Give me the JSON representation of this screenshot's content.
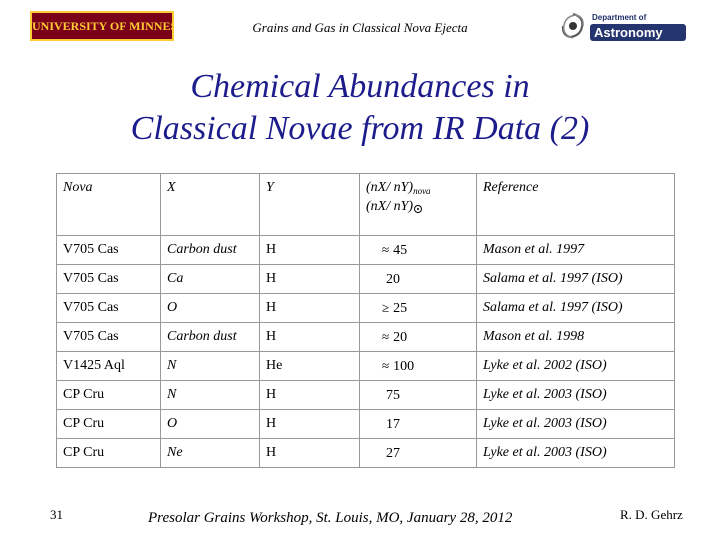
{
  "header": {
    "logo_text": "UNIVERSITY OF MINNESOTA",
    "title": "Grains and Gas in Classical Nova Ejecta",
    "dept_line1": "Department of",
    "dept_line2": "Astronomy"
  },
  "slide": {
    "title_line1": "Chemical Abundances in",
    "title_line2": "Classical Novae from IR Data (2)"
  },
  "table": {
    "headers": {
      "nova": "Nova",
      "x": "X",
      "y": "Y",
      "ratio_nova": "(nX/ nY)",
      "ratio_nova_sub": "nova",
      "ratio_sun": "(nX/ nY)",
      "reference": "Reference"
    },
    "rows": [
      {
        "nova": "V705 Cas",
        "x": "Carbon dust",
        "y": "H",
        "sym": "≈",
        "value": "45",
        "ref": "Mason et al. 1997"
      },
      {
        "nova": "V705 Cas",
        "x": "Ca",
        "y": "H",
        "sym": "",
        "value": "20",
        "ref": "Salama et al. 1997 (ISO)"
      },
      {
        "nova": "V705 Cas",
        "x": "O",
        "y": "H",
        "sym": "≥",
        "value": "25",
        "ref": "Salama et al. 1997 (ISO)"
      },
      {
        "nova": "V705 Cas",
        "x": "Carbon dust",
        "y": "H",
        "sym": "≈",
        "value": "20",
        "ref": "Mason et al. 1998"
      },
      {
        "nova": "V1425 Aql",
        "x": "N",
        "y": "He",
        "sym": "≈",
        "value": "100",
        "ref": "Lyke et al. 2002 (ISO)"
      },
      {
        "nova": "CP Cru",
        "x": "N",
        "y": "H",
        "sym": "",
        "value": "75",
        "ref": "Lyke et al. 2003 (ISO)"
      },
      {
        "nova": "CP Cru",
        "x": "O",
        "y": "H",
        "sym": "",
        "value": "17",
        "ref": "Lyke et al. 2003 (ISO)"
      },
      {
        "nova": "CP Cru",
        "x": "Ne",
        "y": "H",
        "sym": "",
        "value": "27",
        "ref": "Lyke et al. 2003 (ISO)"
      }
    ]
  },
  "footer": {
    "page_number": "31",
    "text": "Presolar Grains Workshop, St. Louis, MO, January 28, 2012",
    "author": "R. D. Gehrz"
  }
}
